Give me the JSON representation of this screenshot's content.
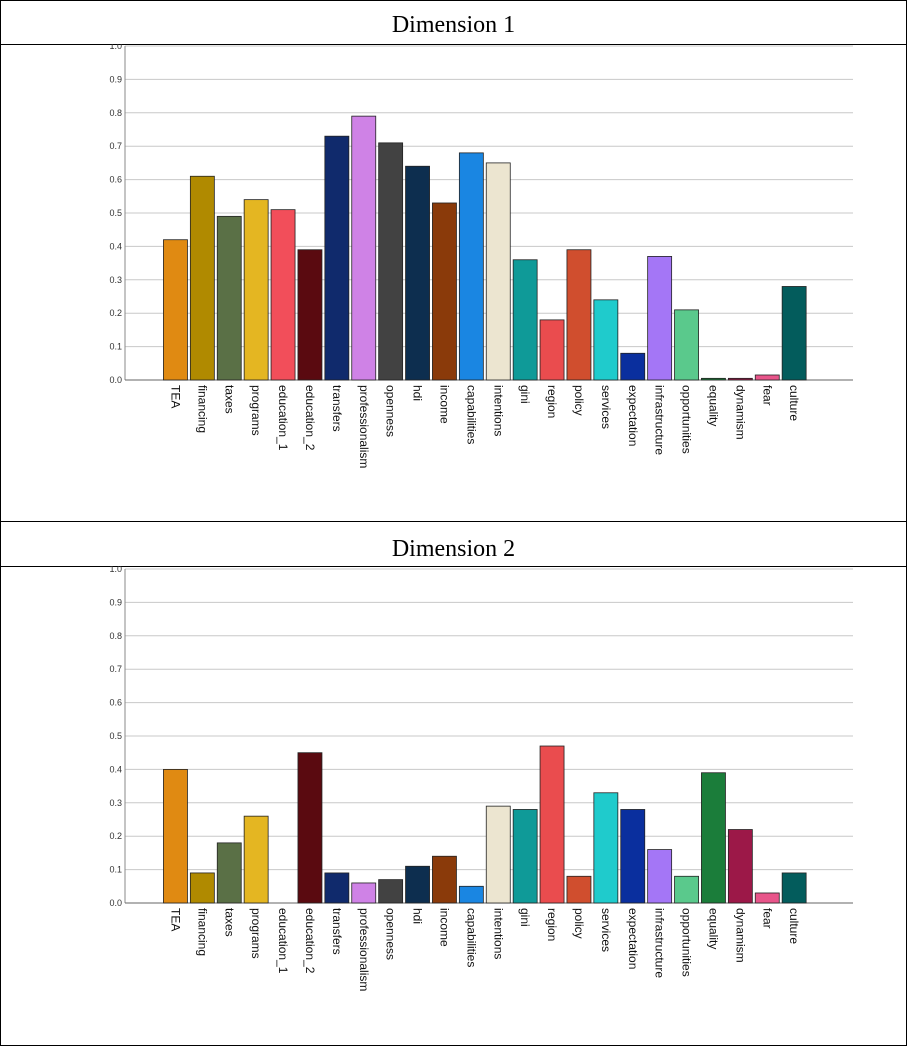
{
  "tables": [
    {
      "title": "Dimension 1"
    },
    {
      "title": "Dimension 2"
    }
  ],
  "chart_data": [
    {
      "type": "bar",
      "title": "Dimension 1",
      "ylim": [
        0,
        1.0
      ],
      "yticks": [
        "0.0",
        "0.1",
        "0.2",
        "0.3",
        "0.4",
        "0.5",
        "0.6",
        "0.7",
        "0.8",
        "0.9",
        "1.0"
      ],
      "grid": true,
      "categories": [
        "TEA",
        "financing",
        "taxes",
        "programs",
        "education_1",
        "education_2",
        "transfers",
        "professionalism",
        "openness",
        "hdi",
        "income",
        "capabilities",
        "intentions",
        "gini",
        "region",
        "policy",
        "services",
        "expectation",
        "infrastructure",
        "opportunities",
        "equality",
        "dynamism",
        "fear",
        "culture"
      ],
      "values": [
        0.42,
        0.61,
        0.49,
        0.54,
        0.51,
        0.39,
        0.73,
        0.79,
        0.71,
        0.64,
        0.53,
        0.68,
        0.65,
        0.36,
        0.18,
        0.39,
        0.24,
        0.08,
        0.37,
        0.21,
        0.005,
        0.005,
        0.015,
        0.28
      ],
      "colors": [
        "#e08a12",
        "#b08a00",
        "#5a7046",
        "#e4b622",
        "#f24e5a",
        "#5a0a10",
        "#102a6c",
        "#cf82e6",
        "#424242",
        "#0d2e4f",
        "#8a3a0a",
        "#1a86e2",
        "#ece5d0",
        "#0f9a98",
        "#ea4c4e",
        "#d04e2e",
        "#1fcbcc",
        "#0a2f9e",
        "#a476f6",
        "#5ac98c",
        "#1b7d3a",
        "#9c1848",
        "#e8558a",
        "#035c5c"
      ]
    },
    {
      "type": "bar",
      "title": "Dimension 2",
      "ylim": [
        0,
        1.0
      ],
      "yticks": [
        "0.0",
        "0.1",
        "0.2",
        "0.3",
        "0.4",
        "0.5",
        "0.6",
        "0.7",
        "0.8",
        "0.9",
        "1.0"
      ],
      "grid": true,
      "categories": [
        "TEA",
        "financing",
        "taxes",
        "programs",
        "education_1",
        "education_2",
        "transfers",
        "professionalism",
        "openness",
        "hdi",
        "income",
        "capabilities",
        "intentions",
        "gini",
        "region",
        "policy",
        "services",
        "expectation",
        "infrastructure",
        "opportunities",
        "equality",
        "dynamism",
        "fear",
        "culture"
      ],
      "values": [
        0.4,
        0.09,
        0.18,
        0.26,
        0.0,
        0.45,
        0.09,
        0.06,
        0.07,
        0.11,
        0.14,
        0.05,
        0.29,
        0.28,
        0.47,
        0.08,
        0.33,
        0.28,
        0.16,
        0.08,
        0.39,
        0.22,
        0.03,
        0.09
      ],
      "colors": [
        "#e08a12",
        "#b08a00",
        "#5a7046",
        "#e4b622",
        "#f24e5a",
        "#5a0a10",
        "#102a6c",
        "#cf82e6",
        "#424242",
        "#0d2e4f",
        "#8a3a0a",
        "#1a86e2",
        "#ece5d0",
        "#0f9a98",
        "#ea4c4e",
        "#d04e2e",
        "#1fcbcc",
        "#0a2f9e",
        "#a476f6",
        "#5ac98c",
        "#1b7d3a",
        "#9c1848",
        "#e8558a",
        "#035c5c"
      ]
    }
  ]
}
